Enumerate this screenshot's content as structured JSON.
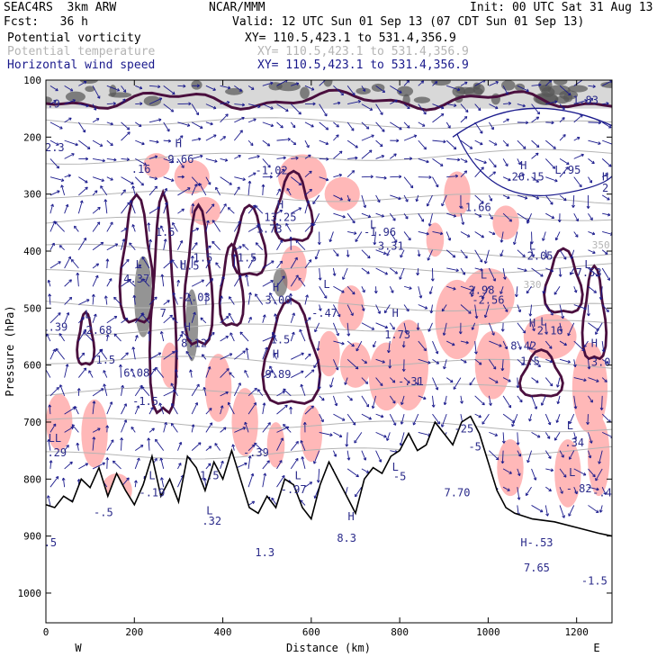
{
  "header": {
    "model_line": "SEAC4RS  3km ARW",
    "org": "NCAR/MMM",
    "init": "Init: 00 UTC Sat 31 Aug 13",
    "fcst": "Fcst:   36 h",
    "valid": "Valid: 12 UTC Sun 01 Sep 13 (07 CDT Sun 01 Sep 13)"
  },
  "fields": [
    {
      "name": "Potential vorticity",
      "xy": "XY= 110.5,423.1 to 531.4,356.9",
      "color": "#000000"
    },
    {
      "name": "Potential temperature",
      "xy": "XY= 110.5,423.1 to 531.4,356.9",
      "color": "#b4b4b4"
    },
    {
      "name": "Horizontal wind speed",
      "xy": "XY= 110.5,423.1 to 531.4,356.9",
      "color": "#1a1a8c"
    }
  ],
  "chart_data": {
    "type": "cross-section",
    "xlabel": "Distance (km)",
    "ylabel": "Pressure (hPa)",
    "xlim": [
      0,
      1280
    ],
    "ylim_pressure": [
      1050,
      100
    ],
    "x_ticks": [
      0,
      200,
      400,
      600,
      800,
      1000,
      1200
    ],
    "y_ticks": [
      100,
      200,
      300,
      400,
      500,
      600,
      700,
      800,
      900,
      1000
    ],
    "endpoints": {
      "left": "W",
      "right": "E"
    },
    "colors": {
      "pv_contour": "#4a0f3e",
      "theta": "#b4b4b4",
      "wind": "#1a1a8c",
      "pv_shade": "#ffb8b8",
      "terrain": "#000000"
    },
    "isentrope_labels": [
      {
        "x": 1100,
        "p": 465,
        "text": "330"
      },
      {
        "x": 1255,
        "p": 395,
        "text": "350"
      }
    ],
    "annotations": [
      {
        "x": 20,
        "p": 225,
        "text": "2.3"
      },
      {
        "x": 10,
        "p": 148,
        "text": "1.9"
      },
      {
        "x": 1220,
        "p": 142,
        "text": "1.83"
      },
      {
        "x": 300,
        "p": 218,
        "text": "H"
      },
      {
        "x": 305,
        "p": 245,
        "text": "9.66"
      },
      {
        "x": 215,
        "p": 263,
        "text": ".16"
      },
      {
        "x": 510,
        "p": 265,
        "text": "-1.02"
      },
      {
        "x": 530,
        "p": 325,
        "text": "H"
      },
      {
        "x": 530,
        "p": 347,
        "text": "13.25"
      },
      {
        "x": 505,
        "p": 368,
        "text": "1.73"
      },
      {
        "x": 270,
        "p": 373,
        "text": "1.5"
      },
      {
        "x": 355,
        "p": 418,
        "text": "1.5"
      },
      {
        "x": 455,
        "p": 418,
        "text": "1.5"
      },
      {
        "x": 740,
        "p": 360,
        "text": "L"
      },
      {
        "x": 755,
        "p": 373,
        "text": "-1.96"
      },
      {
        "x": 780,
        "p": 398,
        "text": "3.31"
      },
      {
        "x": 970,
        "p": 330,
        "text": "-1.66"
      },
      {
        "x": 1080,
        "p": 256,
        "text": "H"
      },
      {
        "x": 1090,
        "p": 276,
        "text": "26.15"
      },
      {
        "x": 1180,
        "p": 264,
        "text": "L.95"
      },
      {
        "x": 1265,
        "p": 276,
        "text": "H"
      },
      {
        "x": 1265,
        "p": 296,
        "text": "2"
      },
      {
        "x": 1100,
        "p": 398,
        "text": "L"
      },
      {
        "x": 1110,
        "p": 415,
        "text": "-2.05"
      },
      {
        "x": 1225,
        "p": 430,
        "text": "L"
      },
      {
        "x": 1220,
        "p": 444,
        "text": "-7.53"
      },
      {
        "x": 990,
        "p": 448,
        "text": "L"
      },
      {
        "x": 985,
        "p": 475,
        "text": "2.98"
      },
      {
        "x": 1000,
        "p": 492,
        "text": "-2.56"
      },
      {
        "x": 210,
        "p": 430,
        "text": "L"
      },
      {
        "x": 205,
        "p": 455,
        "text": "4.37"
      },
      {
        "x": 310,
        "p": 430,
        "text": "H"
      },
      {
        "x": 325,
        "p": 432,
        "text": "L.5"
      },
      {
        "x": 335,
        "p": 488,
        "text": "-2.03"
      },
      {
        "x": 265,
        "p": 515,
        "text": "7"
      },
      {
        "x": 520,
        "p": 470,
        "text": "H"
      },
      {
        "x": 525,
        "p": 492,
        "text": "3.00"
      },
      {
        "x": 635,
        "p": 465,
        "text": "L"
      },
      {
        "x": 630,
        "p": 515,
        "text": "-.47"
      },
      {
        "x": 95,
        "p": 518,
        "text": "L"
      },
      {
        "x": 20,
        "p": 540,
        "text": "1.39"
      },
      {
        "x": 120,
        "p": 545,
        "text": "2.68"
      },
      {
        "x": 320,
        "p": 540,
        "text": "H"
      },
      {
        "x": 335,
        "p": 568,
        "text": "8.12"
      },
      {
        "x": 530,
        "p": 562,
        "text": "1.5"
      },
      {
        "x": 790,
        "p": 515,
        "text": "H"
      },
      {
        "x": 795,
        "p": 553,
        "text": "1.73"
      },
      {
        "x": 1100,
        "p": 533,
        "text": "H"
      },
      {
        "x": 1080,
        "p": 573,
        "text": "8.42"
      },
      {
        "x": 1125,
        "p": 530,
        "text": "L"
      },
      {
        "x": 1140,
        "p": 546,
        "text": "2.16"
      },
      {
        "x": 1095,
        "p": 600,
        "text": "1.5"
      },
      {
        "x": 1240,
        "p": 568,
        "text": "H"
      },
      {
        "x": 1255,
        "p": 601,
        "text": "3.0"
      },
      {
        "x": 135,
        "p": 597,
        "text": "1.5"
      },
      {
        "x": 205,
        "p": 620,
        "text": "6.08"
      },
      {
        "x": 225,
        "p": 670,
        "text": "-1.5"
      },
      {
        "x": 520,
        "p": 587,
        "text": "H"
      },
      {
        "x": 525,
        "p": 623,
        "text": "9.89"
      },
      {
        "x": 825,
        "p": 635,
        "text": "-.31"
      },
      {
        "x": 20,
        "p": 735,
        "text": "LL"
      },
      {
        "x": 25,
        "p": 760,
        "text": ".29"
      },
      {
        "x": 945,
        "p": 718,
        "text": "-25"
      },
      {
        "x": 970,
        "p": 750,
        "text": "-5"
      },
      {
        "x": 1185,
        "p": 713,
        "text": "L"
      },
      {
        "x": 1195,
        "p": 743,
        "text": ".34"
      },
      {
        "x": 1190,
        "p": 795,
        "text": "L"
      },
      {
        "x": 1205,
        "p": 823,
        "text": "-.82"
      },
      {
        "x": 1265,
        "p": 830,
        "text": "-.46"
      },
      {
        "x": 475,
        "p": 760,
        "text": "-.39"
      },
      {
        "x": 790,
        "p": 785,
        "text": "L"
      },
      {
        "x": 800,
        "p": 802,
        "text": "-5"
      },
      {
        "x": 930,
        "p": 830,
        "text": "7.70"
      },
      {
        "x": 370,
        "p": 800,
        "text": "1.5"
      },
      {
        "x": 240,
        "p": 800,
        "text": "L"
      },
      {
        "x": 240,
        "p": 830,
        "text": "-.19"
      },
      {
        "x": 570,
        "p": 800,
        "text": "L"
      },
      {
        "x": 560,
        "p": 825,
        "text": "-.97"
      },
      {
        "x": 130,
        "p": 865,
        "text": "-.5"
      },
      {
        "x": 370,
        "p": 862,
        "text": "L"
      },
      {
        "x": 375,
        "p": 880,
        "text": ".32"
      },
      {
        "x": 690,
        "p": 872,
        "text": "H"
      },
      {
        "x": 680,
        "p": 910,
        "text": "8.3"
      },
      {
        "x": 10,
        "p": 918,
        "text": ".5"
      },
      {
        "x": 495,
        "p": 935,
        "text": "1.3"
      },
      {
        "x": 1110,
        "p": 918,
        "text": "H-.53"
      },
      {
        "x": 1110,
        "p": 962,
        "text": "7.65"
      },
      {
        "x": 1240,
        "p": 985,
        "text": "-1.5"
      }
    ]
  }
}
